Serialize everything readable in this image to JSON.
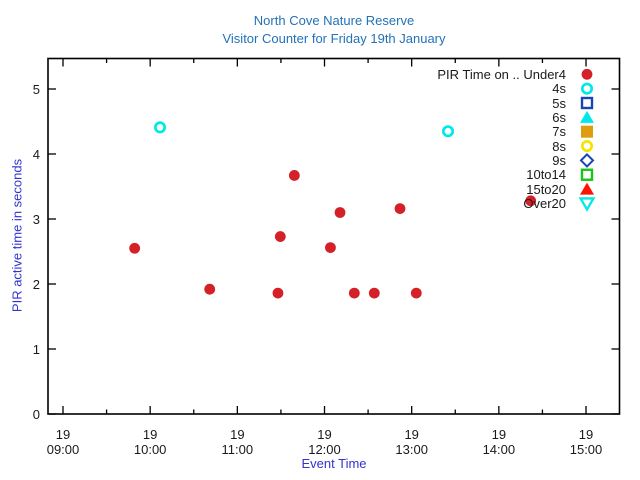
{
  "chart_data": {
    "type": "scatter",
    "title": "North Cove Nature Reserve",
    "subtitle": "Visitor Counter for Friday 19th January",
    "xlabel": "Event Time",
    "ylabel": "PIR active time in seconds",
    "title_color": "#2272b8",
    "axis_label_color": "#3232d2",
    "frame_color": "#000000",
    "grid": false,
    "x_axis": {
      "tick_day": "19",
      "tick_times": [
        "09:00",
        "10:00",
        "11:00",
        "12:00",
        "13:00",
        "14:00",
        "15:00"
      ],
      "tick_hours": [
        9,
        10,
        11,
        12,
        13,
        14,
        15
      ],
      "minor_tick_hours": [
        9.5,
        10.5,
        11.5,
        12.5,
        13.5,
        14.5
      ],
      "range_hours": [
        8.83,
        15.38
      ]
    },
    "y_axis": {
      "ticks": [
        0,
        1,
        2,
        3,
        4,
        5
      ],
      "range": [
        0,
        5.47
      ]
    },
    "legend": {
      "position": "top-right-inside",
      "entries": [
        {
          "label": "PIR Time on .. Under4",
          "marker": "circle",
          "fill": true,
          "color": "#d42128"
        },
        {
          "label": "4s",
          "marker": "circle",
          "fill": false,
          "color": "#00e9e9"
        },
        {
          "label": "5s",
          "marker": "square",
          "fill": false,
          "color": "#1646b4"
        },
        {
          "label": "6s",
          "marker": "triangle-up",
          "fill": true,
          "color": "#00e9e9"
        },
        {
          "label": "7s",
          "marker": "square",
          "fill": true,
          "color": "#dd9d0f"
        },
        {
          "label": "8s",
          "marker": "circle",
          "fill": false,
          "color": "#f4e400"
        },
        {
          "label": "9s",
          "marker": "diamond",
          "fill": false,
          "color": "#1646b4"
        },
        {
          "label": "10to14",
          "marker": "square",
          "fill": false,
          "color": "#17c617"
        },
        {
          "label": "15to20",
          "marker": "triangle-up",
          "fill": true,
          "color": "#fd1205"
        },
        {
          "label": "Over20",
          "marker": "triangle-down",
          "fill": false,
          "color": "#00e9e9"
        }
      ]
    },
    "series": [
      {
        "name": "Under4",
        "marker": "circle",
        "fill": true,
        "color": "#d42128",
        "points": [
          {
            "time": "09:49",
            "hour": 9.822,
            "seconds": 2.55
          },
          {
            "time": "10:41",
            "hour": 10.683,
            "seconds": 1.92
          },
          {
            "time": "11:28",
            "hour": 11.466,
            "seconds": 1.86
          },
          {
            "time": "11:30",
            "hour": 11.493,
            "seconds": 2.73
          },
          {
            "time": "11:39",
            "hour": 11.654,
            "seconds": 3.67
          },
          {
            "time": "12:04",
            "hour": 12.068,
            "seconds": 2.56
          },
          {
            "time": "12:11",
            "hour": 12.178,
            "seconds": 3.1
          },
          {
            "time": "12:21",
            "hour": 12.342,
            "seconds": 1.86
          },
          {
            "time": "12:34",
            "hour": 12.571,
            "seconds": 1.86
          },
          {
            "time": "12:52",
            "hour": 12.866,
            "seconds": 3.16
          },
          {
            "time": "13:03",
            "hour": 13.053,
            "seconds": 1.86
          },
          {
            "time": "14:22",
            "hour": 14.365,
            "seconds": 3.28
          }
        ]
      },
      {
        "name": "4s",
        "marker": "circle",
        "fill": false,
        "color": "#00e9e9",
        "points": [
          {
            "time": "10:07",
            "hour": 10.113,
            "seconds": 4.41
          },
          {
            "time": "13:25",
            "hour": 13.417,
            "seconds": 4.35
          }
        ]
      }
    ]
  }
}
